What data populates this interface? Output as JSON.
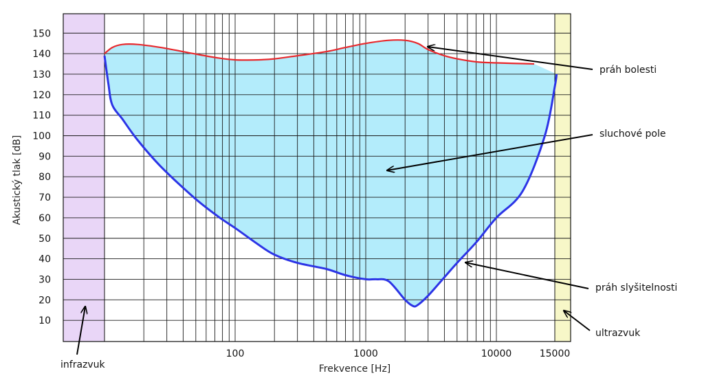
{
  "chart_data": {
    "type": "area",
    "xlabel": "Frekvence [Hz]",
    "ylabel": "Akustický tlak [dB]",
    "x_scale": "log",
    "xlim": [
      10,
      15000
    ],
    "ylim": [
      0,
      155
    ],
    "x_ticks": [
      {
        "value": 100,
        "label": "100"
      },
      {
        "value": 1000,
        "label": "1000"
      },
      {
        "value": 10000,
        "label": "10000"
      },
      {
        "value": 15000,
        "label": "15000"
      }
    ],
    "y_ticks": [
      10,
      20,
      30,
      40,
      50,
      60,
      70,
      80,
      90,
      100,
      110,
      120,
      130,
      140,
      150
    ],
    "grid": true,
    "regions": [
      {
        "label": "infrazvuk",
        "x_from": 10,
        "x_to": 20,
        "color": "#e9d6f7"
      },
      {
        "label": "ultrazvuk",
        "x_from": 15000,
        "x_to": 20000,
        "color": "#f7f7c8"
      }
    ],
    "series": [
      {
        "name": "práh bolesti",
        "color": "#e8282c",
        "x": [
          20,
          22,
          25,
          30,
          40,
          60,
          80,
          100,
          150,
          200,
          300,
          500,
          700,
          1000,
          1500,
          2000,
          2500,
          3000,
          4000,
          5000,
          7000,
          10000,
          13000
        ],
        "y": [
          140,
          143,
          144.5,
          144.5,
          143,
          140,
          138,
          137,
          137,
          137.5,
          139,
          141,
          143,
          145,
          146.5,
          146.5,
          145,
          142,
          139,
          137.5,
          136,
          135.5,
          135
        ]
      },
      {
        "name": "práh slyšitelnosti",
        "color": "#2c34e6",
        "x": [
          20,
          21,
          22,
          25,
          30,
          40,
          60,
          80,
          100,
          150,
          200,
          300,
          500,
          700,
          1000,
          1200,
          1500,
          2000,
          2300,
          2500,
          3000,
          4000,
          5000,
          7000,
          10000,
          12000,
          14000,
          15000,
          15500
        ],
        "y": [
          139,
          125,
          115,
          108,
          98,
          85,
          70,
          61,
          55,
          47,
          42,
          38,
          35,
          32,
          30,
          30,
          29,
          20,
          17,
          17.5,
          22,
          31,
          38,
          48,
          60,
          73,
          100,
          124,
          130
        ]
      }
    ],
    "fill_color": "#b3ecfb",
    "annotations": [
      {
        "text": "práh bolesti",
        "target_x": 2900,
        "target_y": 143.5
      },
      {
        "text": "sluchové pole",
        "target_x": 2100,
        "target_y": 84
      },
      {
        "text": "práh slyšitelnosti",
        "target_x": 5600,
        "target_y": 38
      },
      {
        "text": "ultrazvuk",
        "target_x": 15200,
        "target_y": 14
      },
      {
        "text": "infrazvuk",
        "target_x": 15.5,
        "target_y": 16
      }
    ]
  }
}
